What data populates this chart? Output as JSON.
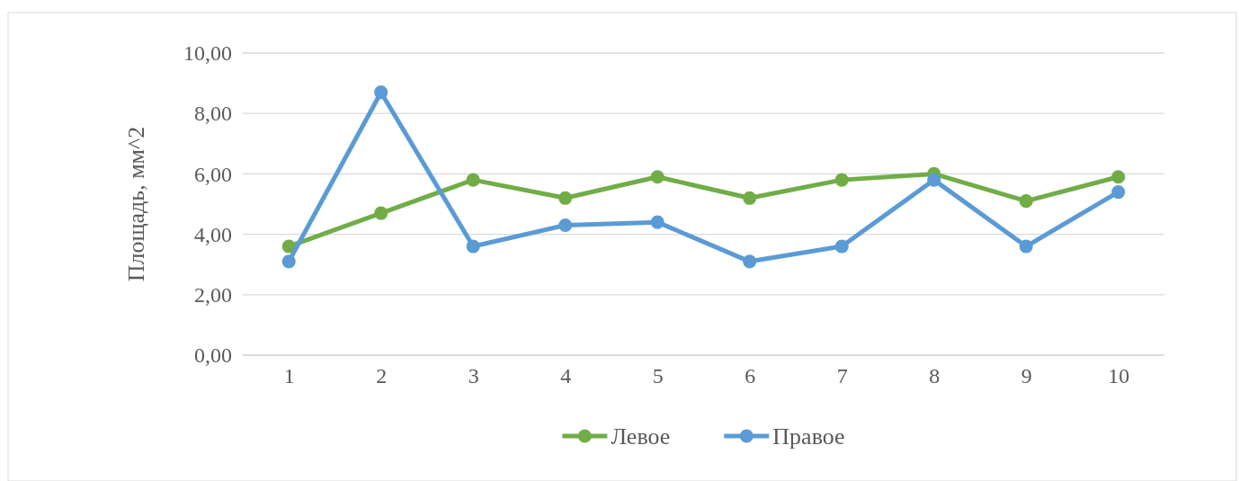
{
  "chart_data": {
    "type": "line",
    "ylabel": "Площадь, мм^2",
    "categories": [
      "1",
      "2",
      "3",
      "4",
      "5",
      "6",
      "7",
      "8",
      "9",
      "10"
    ],
    "series": [
      {
        "name": "Левое",
        "color": "#70ad47",
        "values": [
          3.6,
          4.7,
          5.8,
          5.2,
          5.9,
          5.2,
          5.8,
          6.0,
          5.1,
          5.9
        ]
      },
      {
        "name": "Правое",
        "color": "#5b9bd5",
        "values": [
          3.1,
          8.7,
          3.6,
          4.3,
          4.4,
          3.1,
          3.6,
          5.8,
          3.6,
          5.4
        ]
      }
    ],
    "ylim": [
      0,
      10
    ],
    "yticks": [
      {
        "value": 0,
        "label": "0,00"
      },
      {
        "value": 2,
        "label": "2,00"
      },
      {
        "value": 4,
        "label": "4,00"
      },
      {
        "value": 6,
        "label": "6,00"
      },
      {
        "value": 8,
        "label": "8,00"
      },
      {
        "value": 10,
        "label": "10,00"
      }
    ],
    "grid": "y",
    "legend": "bottom",
    "marker": "circle",
    "line_style": "solid"
  }
}
